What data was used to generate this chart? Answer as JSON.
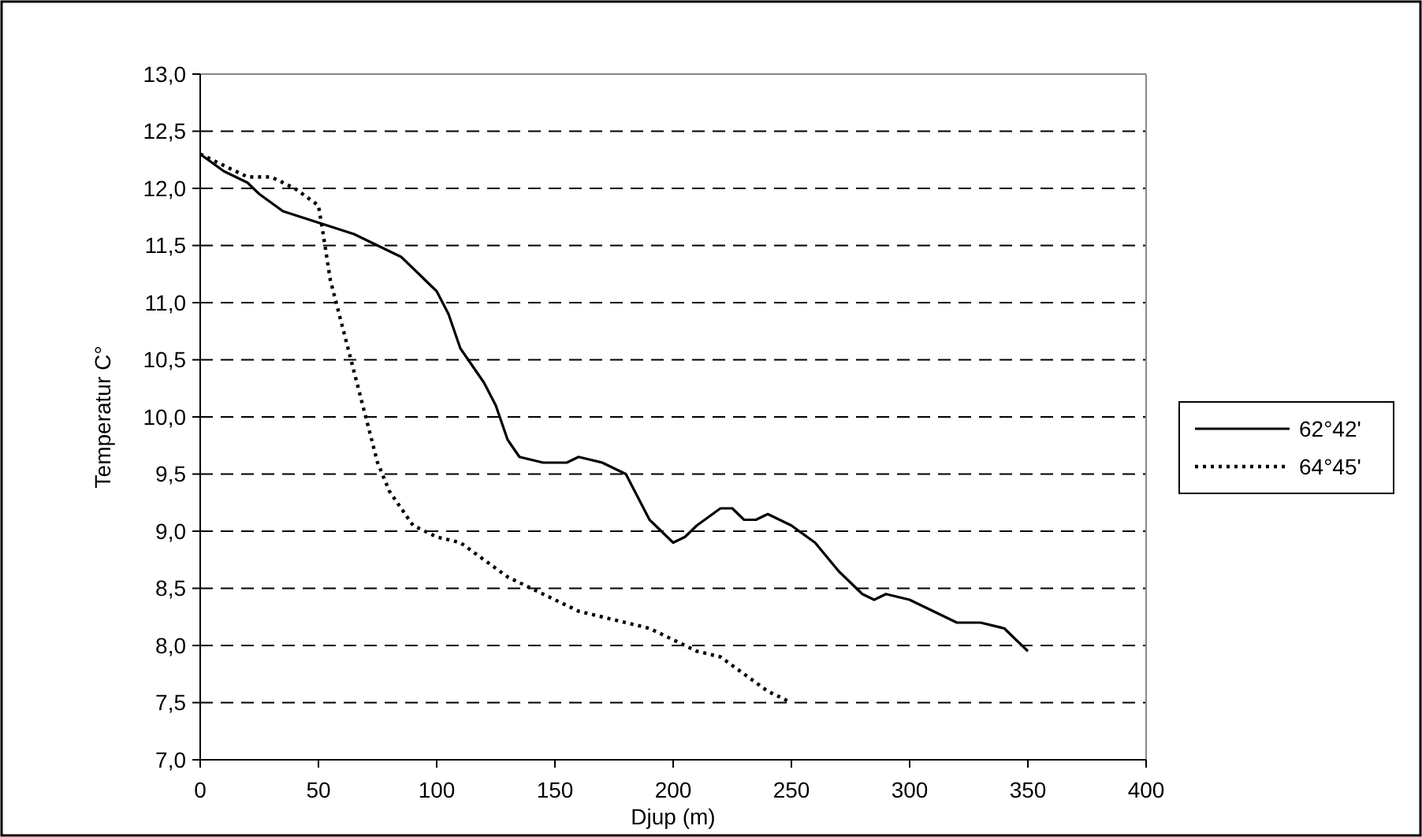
{
  "chart_data": {
    "type": "line",
    "xlabel": "Djup (m)",
    "ylabel": "Temperatur C°",
    "xlim": [
      0,
      400
    ],
    "ylim": [
      7,
      13
    ],
    "xticks": [
      0,
      50,
      100,
      150,
      200,
      250,
      300,
      350,
      400
    ],
    "yticks": [
      {
        "value": 7,
        "label": "7,0"
      },
      {
        "value": 7.5,
        "label": "7,5"
      },
      {
        "value": 8,
        "label": "8,0"
      },
      {
        "value": 8.5,
        "label": "8,5"
      },
      {
        "value": 9,
        "label": "9,0"
      },
      {
        "value": 9.5,
        "label": "9,5"
      },
      {
        "value": 10,
        "label": "10,0"
      },
      {
        "value": 10.5,
        "label": "10,5"
      },
      {
        "value": 11,
        "label": "11,0"
      },
      {
        "value": 11.5,
        "label": "11,5"
      },
      {
        "value": 12,
        "label": "12,0"
      },
      {
        "value": 12.5,
        "label": "12,5"
      },
      {
        "value": 13,
        "label": "13,0"
      }
    ],
    "grid": "y",
    "legend": "right",
    "marker": "none",
    "series": [
      {
        "name": "62°42'",
        "color": "#000000",
        "line_style": "solid",
        "x": [
          0,
          10,
          20,
          25,
          35,
          50,
          65,
          75,
          85,
          95,
          100,
          105,
          110,
          120,
          125,
          130,
          135,
          145,
          155,
          160,
          170,
          180,
          190,
          200,
          205,
          210,
          220,
          225,
          230,
          235,
          240,
          250,
          260,
          270,
          280,
          285,
          290,
          300,
          310,
          320,
          330,
          340,
          350
        ],
        "values": [
          12.3,
          12.15,
          12.05,
          11.95,
          11.8,
          11.7,
          11.6,
          11.5,
          11.4,
          11.2,
          11.1,
          10.9,
          10.6,
          10.3,
          10.1,
          9.8,
          9.65,
          9.6,
          9.6,
          9.65,
          9.6,
          9.5,
          9.1,
          8.9,
          8.95,
          9.05,
          9.2,
          9.2,
          9.1,
          9.1,
          9.15,
          9.05,
          8.9,
          8.65,
          8.45,
          8.4,
          8.45,
          8.4,
          8.3,
          8.2,
          8.2,
          8.15,
          7.95
        ]
      },
      {
        "name": "64°45'",
        "color": "#000000",
        "line_style": "dotted",
        "x": [
          0,
          10,
          20,
          30,
          40,
          50,
          52,
          55,
          60,
          65,
          70,
          75,
          80,
          85,
          90,
          100,
          110,
          120,
          130,
          140,
          150,
          160,
          170,
          180,
          190,
          200,
          210,
          220,
          230,
          240,
          250
        ],
        "values": [
          12.3,
          12.2,
          12.1,
          12.1,
          12.0,
          11.85,
          11.6,
          11.2,
          10.8,
          10.4,
          10.0,
          9.6,
          9.35,
          9.2,
          9.05,
          8.95,
          8.9,
          8.75,
          8.6,
          8.5,
          8.4,
          8.3,
          8.25,
          8.2,
          8.15,
          8.05,
          7.95,
          7.9,
          7.75,
          7.6,
          7.5
        ]
      }
    ]
  }
}
